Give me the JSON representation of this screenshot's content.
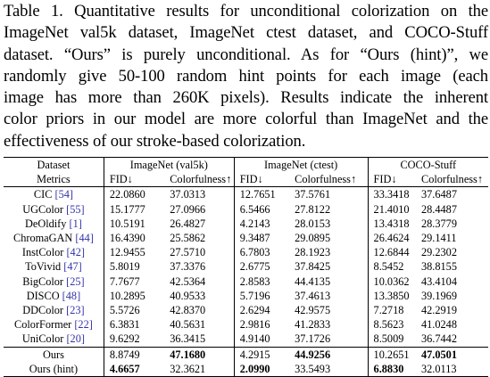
{
  "caption": {
    "lines": [
      "Table 1. Quantitative results for unconditional colorization on the",
      "ImageNet val5k dataset, ImageNet ctest dataset, and COCO-Stuff",
      "dataset. “Ours” is purely unconditional. As for “Ours (hint)”, we",
      "randomly give 50-100 random hint points for each image (each",
      "image has more than 260K pixels). Results indicate the inherent",
      "color priors in our model are more colorful than ImageNet and the",
      "effectiveness of our stroke-based colorization."
    ]
  },
  "table": {
    "header": {
      "dataset_label": "Dataset",
      "metrics_label": "Metrics",
      "groups": [
        "ImageNet (val5k)",
        "ImageNet (ctest)",
        "COCO-Stuff"
      ],
      "fid_label": "FID↓",
      "colorfulness_label": "Colorfulness↑"
    },
    "rows": [
      {
        "method": "CIC",
        "cite": "[54]",
        "vals": [
          "22.0860",
          "37.0313",
          "12.7651",
          "37.5761",
          "33.3418",
          "37.6487"
        ],
        "bold": []
      },
      {
        "method": "UGColor",
        "cite": "[55]",
        "vals": [
          "15.1777",
          "27.0966",
          "6.5466",
          "27.8122",
          "21.4010",
          "28.4487"
        ],
        "bold": []
      },
      {
        "method": "DeOldify",
        "cite": "[1]",
        "vals": [
          "10.5191",
          "26.4827",
          "4.2143",
          "28.0153",
          "13.4318",
          "28.3779"
        ],
        "bold": []
      },
      {
        "method": "ChromaGAN",
        "cite": "[44]",
        "vals": [
          "16.4390",
          "25.5862",
          "9.3487",
          "29.0895",
          "26.4624",
          "29.1411"
        ],
        "bold": []
      },
      {
        "method": "InstColor",
        "cite": "[42]",
        "vals": [
          "12.9455",
          "27.5710",
          "6.7803",
          "28.1923",
          "12.6844",
          "29.2302"
        ],
        "bold": []
      },
      {
        "method": "ToVivid",
        "cite": "[47]",
        "vals": [
          "5.8019",
          "37.3376",
          "2.6775",
          "37.8425",
          "8.5452",
          "38.8155"
        ],
        "bold": []
      },
      {
        "method": "BigColor",
        "cite": "[25]",
        "vals": [
          "7.7677",
          "42.5364",
          "2.8583",
          "44.4135",
          "10.0362",
          "43.4104"
        ],
        "bold": []
      },
      {
        "method": "DISCO",
        "cite": "[48]",
        "vals": [
          "10.2895",
          "40.9533",
          "5.7196",
          "37.4613",
          "13.3850",
          "39.1969"
        ],
        "bold": []
      },
      {
        "method": "DDColor",
        "cite": "[23]",
        "vals": [
          "5.5726",
          "42.8370",
          "2.6294",
          "42.9575",
          "7.2718",
          "42.2919"
        ],
        "bold": []
      },
      {
        "method": "ColorFormer",
        "cite": "[22]",
        "vals": [
          "6.3831",
          "40.5631",
          "2.9816",
          "41.2833",
          "8.5623",
          "41.0248"
        ],
        "bold": []
      },
      {
        "method": "UniColor",
        "cite": "[20]",
        "vals": [
          "9.6292",
          "36.3415",
          "4.9140",
          "37.1726",
          "8.5009",
          "36.7442"
        ],
        "bold": []
      },
      {
        "method": "Ours",
        "cite": "",
        "vals": [
          "8.8749",
          "47.1680",
          "4.2915",
          "44.9256",
          "10.2651",
          "47.0501"
        ],
        "bold": [
          1,
          3,
          5
        ]
      },
      {
        "method": "Ours (hint)",
        "cite": "",
        "vals": [
          "4.6657",
          "32.3621",
          "2.0990",
          "33.5493",
          "6.8830",
          "32.0113"
        ],
        "bold": [
          0,
          2,
          4
        ]
      }
    ]
  }
}
